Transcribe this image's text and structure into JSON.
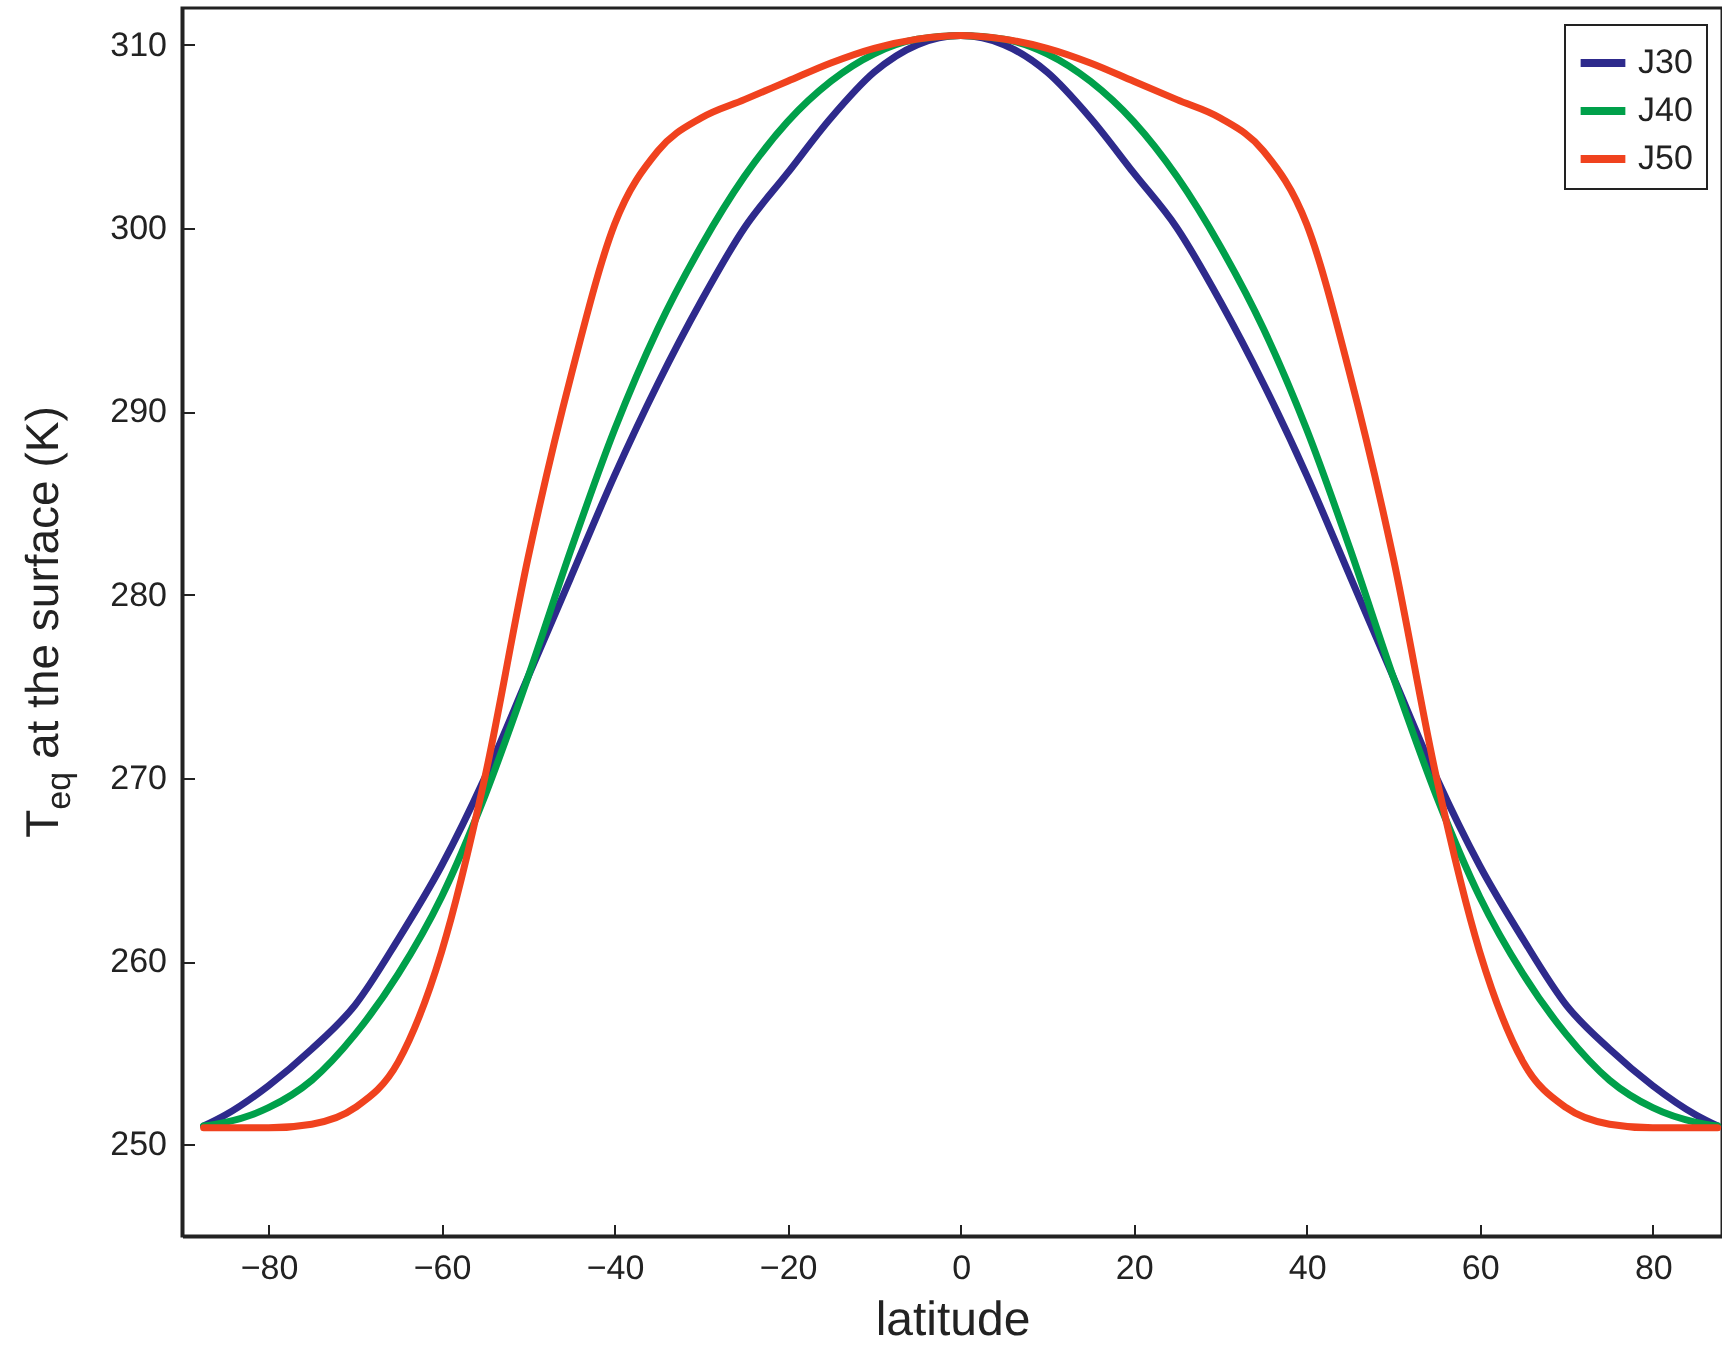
{
  "chart_data": {
    "type": "line",
    "xlabel": "latitude",
    "ylabel": "T$_{eq}$ at the surface (K)",
    "x": [
      -87.5,
      -85,
      -80,
      -75,
      -70,
      -65,
      -60,
      -55,
      -50,
      -45,
      -40,
      -35,
      -30,
      -25,
      -20,
      -15,
      -10,
      -5,
      0,
      5,
      10,
      15,
      20,
      25,
      30,
      35,
      40,
      45,
      50,
      55,
      60,
      65,
      70,
      75,
      80,
      85,
      87.5
    ],
    "series": [
      {
        "name": "J30",
        "color": "#2e2a8c",
        "values": [
          251,
          251.6,
          253.2,
          255.2,
          257.6,
          261.2,
          265.2,
          270,
          275.5,
          281,
          286.5,
          291.5,
          296,
          300,
          303,
          306,
          308.5,
          310,
          310.5,
          310,
          308.5,
          306,
          303,
          300,
          296,
          291.5,
          286.5,
          281,
          275.5,
          270,
          265.2,
          261.2,
          257.6,
          255.2,
          253.2,
          251.6,
          251
        ]
      },
      {
        "name": "J40",
        "color": "#00a04a",
        "values": [
          251,
          251.2,
          252,
          253.5,
          256,
          259.3,
          263.5,
          269,
          275.5,
          282.5,
          289,
          294.5,
          299,
          302.8,
          305.8,
          308,
          309.5,
          310.3,
          310.5,
          310.3,
          309.5,
          308,
          305.8,
          302.8,
          299,
          294.5,
          289,
          282.5,
          275.5,
          269,
          263.5,
          259.3,
          256,
          253.5,
          252,
          251.2,
          251
        ]
      },
      {
        "name": "J50",
        "color": "#f0421e",
        "values": [
          250.9,
          250.9,
          250.9,
          251.1,
          252,
          254.5,
          260.5,
          270,
          282,
          292,
          300.2,
          304.2,
          306,
          307,
          308,
          309,
          309.8,
          310.3,
          310.5,
          310.3,
          309.8,
          309,
          308,
          307,
          306,
          304.2,
          300.2,
          292,
          282,
          270,
          260.5,
          254.5,
          252,
          251.1,
          250.9,
          250.9,
          250.9
        ]
      }
    ],
    "xlim": [
      -90,
      88
    ],
    "ylim": [
      245,
      312
    ],
    "xticks": [
      -80,
      -60,
      -40,
      -20,
      0,
      20,
      40,
      60,
      80
    ],
    "yticks": [
      250,
      260,
      270,
      280,
      290,
      300,
      310
    ],
    "legend": "top right",
    "grid": false,
    "marker": "none",
    "line_style": "solid"
  }
}
